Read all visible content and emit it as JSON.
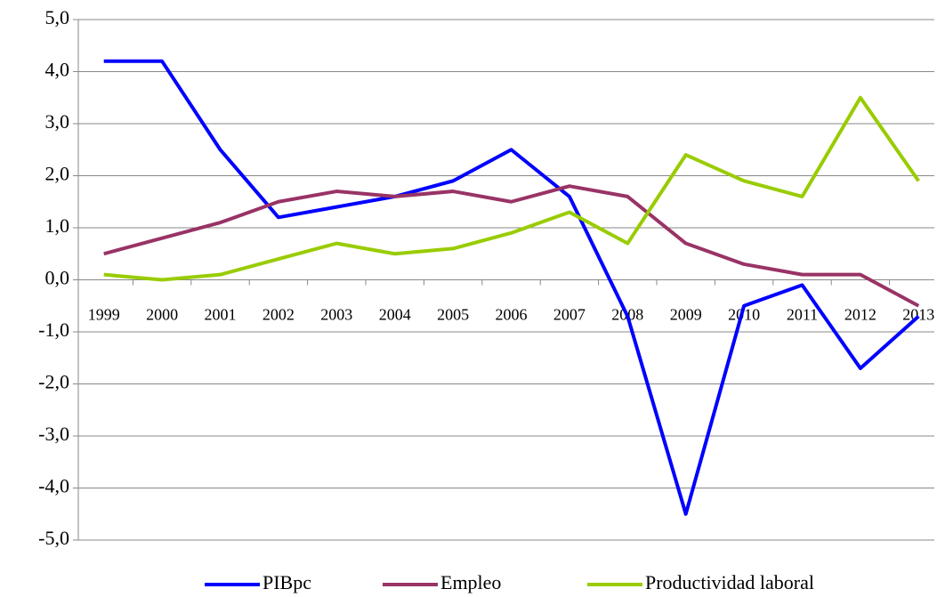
{
  "chart_data": {
    "type": "line",
    "categories": [
      "1999",
      "2000",
      "2001",
      "2002",
      "2003",
      "2004",
      "2005",
      "2006",
      "2007",
      "2008",
      "2009",
      "2010",
      "2011",
      "2012",
      "2013"
    ],
    "series": [
      {
        "name": "PIBpc",
        "color": "#0000ff",
        "values": [
          4.2,
          4.2,
          2.5,
          1.2,
          1.4,
          1.6,
          1.9,
          2.5,
          1.6,
          -0.7,
          -4.5,
          -0.5,
          -0.1,
          -1.7,
          -0.7
        ]
      },
      {
        "name": "Empleo",
        "color": "#993366",
        "values": [
          0.5,
          0.8,
          1.1,
          1.5,
          1.7,
          1.6,
          1.7,
          1.5,
          1.8,
          1.6,
          0.7,
          0.3,
          0.1,
          0.1,
          -0.5
        ]
      },
      {
        "name": "Productividad laboral",
        "color": "#99cc00",
        "values": [
          0.1,
          0.0,
          0.1,
          0.4,
          0.7,
          0.5,
          0.6,
          0.9,
          1.3,
          0.7,
          2.4,
          1.9,
          1.6,
          3.5,
          1.9
        ]
      }
    ],
    "ylim": [
      -5,
      5
    ],
    "yticks": [
      {
        "value": -5,
        "label": "-5,0"
      },
      {
        "value": -4,
        "label": "-4,0"
      },
      {
        "value": -3,
        "label": "-3,0"
      },
      {
        "value": -2,
        "label": "-2,0"
      },
      {
        "value": -1,
        "label": "-1,0"
      },
      {
        "value": 0,
        "label": "0,0"
      },
      {
        "value": 1,
        "label": "1,0"
      },
      {
        "value": 2,
        "label": "2,0"
      },
      {
        "value": 3,
        "label": "3,0"
      },
      {
        "value": 4,
        "label": "4,0"
      },
      {
        "value": 5,
        "label": "5,0"
      }
    ],
    "grid": true,
    "legend": "bottom"
  }
}
